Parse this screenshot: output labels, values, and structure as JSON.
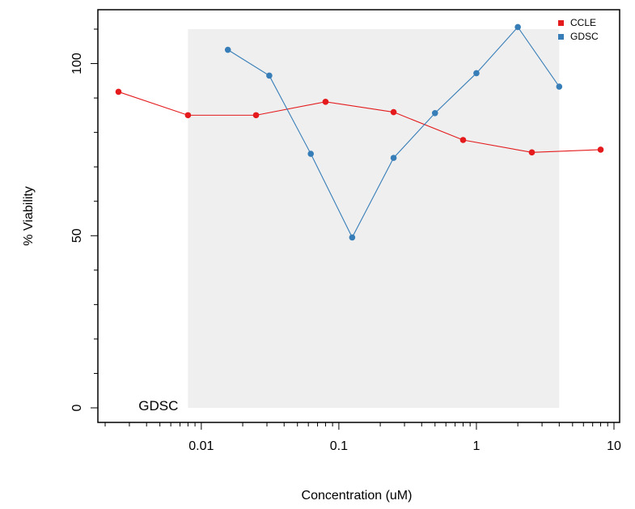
{
  "chart_data": {
    "type": "line",
    "title": "",
    "xlabel": "Concentration (uM)",
    "ylabel": "% Viability",
    "x_scale": "log10",
    "xlim": [
      0.002,
      10
    ],
    "ylim": [
      0,
      110
    ],
    "x_ticks": [
      0.01,
      0.1,
      1,
      10
    ],
    "x_tick_labels": [
      "0.01",
      "0.1",
      "1",
      "10"
    ],
    "y_ticks": [
      0,
      50,
      100
    ],
    "y_tick_labels": [
      "0",
      "50",
      "100"
    ],
    "grid": false,
    "legend_position": "top-right",
    "shaded_region": {
      "label": "GDSC",
      "x": [
        0.008,
        4
      ],
      "y": [
        0,
        110
      ],
      "color": "#efefef"
    },
    "series": [
      {
        "name": "CCLE",
        "color": "#e41a1c",
        "x": [
          0.0025,
          0.008,
          0.025,
          0.08,
          0.25,
          0.8,
          2.53,
          8
        ],
        "y": [
          91.8,
          85.0,
          85.0,
          88.9,
          85.9,
          77.8,
          74.2,
          75.0
        ]
      },
      {
        "name": "GDSC",
        "color": "#377eb8",
        "x": [
          0.0156,
          0.0312,
          0.0625,
          0.125,
          0.25,
          0.5,
          1,
          2,
          4
        ],
        "y": [
          104.0,
          96.5,
          73.8,
          49.5,
          72.6,
          85.6,
          97.2,
          110.6,
          93.3
        ]
      }
    ]
  }
}
